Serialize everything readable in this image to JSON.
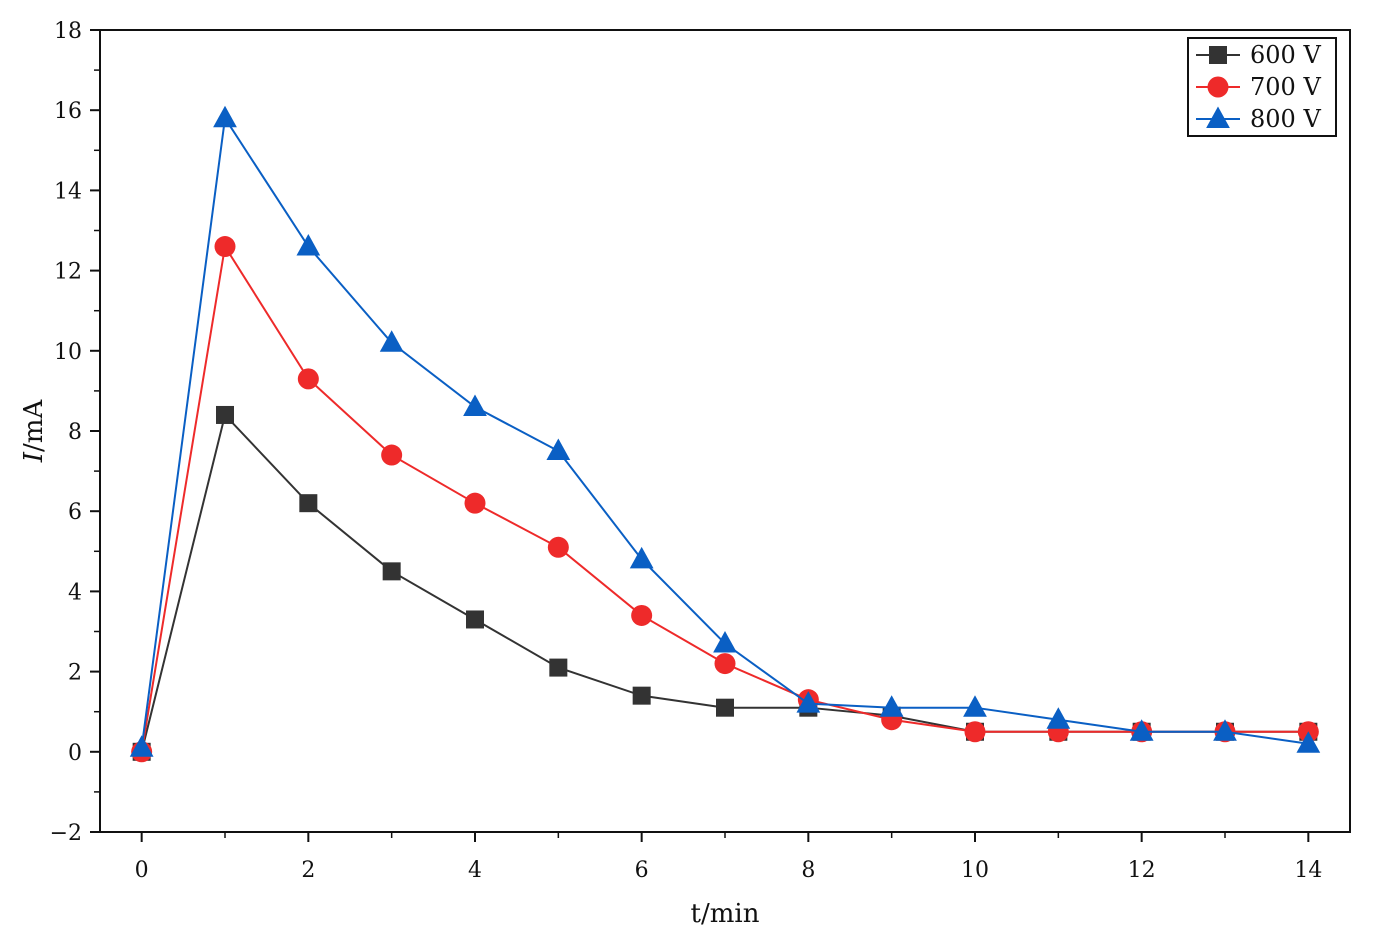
{
  "chart_data": {
    "type": "line",
    "title": "",
    "xlabel": "t/min",
    "ylabel": {
      "italic": "I",
      "rest": "/mA"
    },
    "xlim": [
      -0.5,
      14.5
    ],
    "ylim": [
      -2,
      18
    ],
    "x_ticks": [
      0,
      2,
      4,
      6,
      8,
      10,
      12,
      14
    ],
    "y_ticks": [
      -2,
      0,
      2,
      4,
      6,
      8,
      10,
      12,
      14,
      16,
      18
    ],
    "y_tick_labels": [
      "−2",
      "0",
      "2",
      "4",
      "6",
      "8",
      "10",
      "12",
      "14",
      "16",
      "18"
    ],
    "grid": false,
    "legend_position": "top-right",
    "x": [
      0,
      1,
      2,
      3,
      4,
      5,
      6,
      7,
      8,
      9,
      10,
      11,
      12,
      13,
      14
    ],
    "series": [
      {
        "name": "600  V",
        "color": "#333333",
        "marker": "square",
        "values": [
          0,
          8.4,
          6.2,
          4.5,
          3.3,
          2.1,
          1.4,
          1.1,
          1.1,
          0.9,
          0.5,
          0.5,
          0.5,
          0.5,
          0.5
        ]
      },
      {
        "name": "700  V",
        "color": "#ee2a2a",
        "marker": "circle",
        "values": [
          0,
          12.6,
          9.3,
          7.4,
          6.2,
          5.1,
          3.4,
          2.2,
          1.3,
          0.8,
          0.5,
          0.5,
          0.5,
          0.5,
          0.5
        ]
      },
      {
        "name": "800  V",
        "color": "#0a5fc4",
        "marker": "triangle",
        "values": [
          0.1,
          15.8,
          12.6,
          10.2,
          8.6,
          7.5,
          4.8,
          2.7,
          1.2,
          1.1,
          1.1,
          0.8,
          0.5,
          0.5,
          0.2
        ]
      }
    ]
  }
}
